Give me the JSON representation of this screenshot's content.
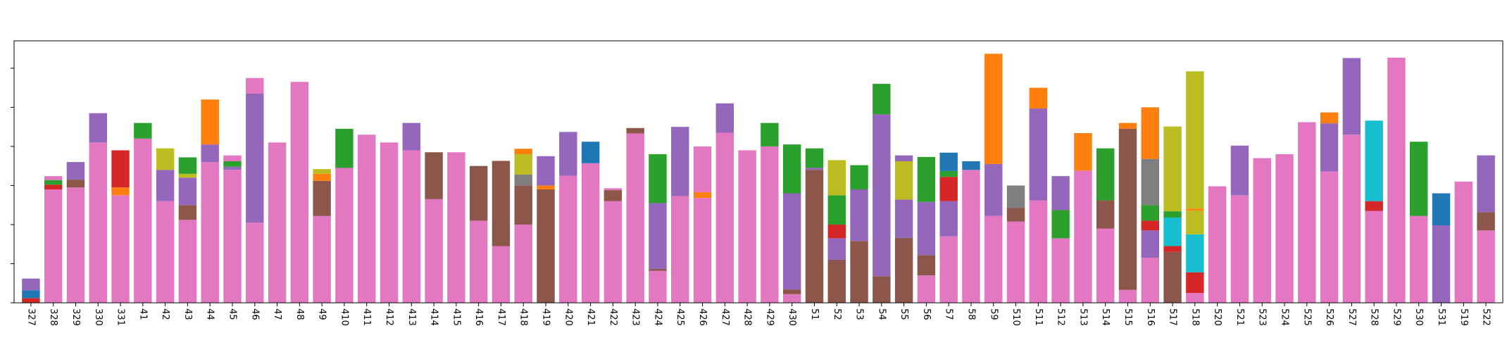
{
  "chart_data": {
    "type": "bar",
    "stacked": true,
    "ylim": [
      0,
      6.7
    ],
    "legend": "none",
    "grid": false,
    "categories": [
      "327",
      "328",
      "329",
      "330",
      "331",
      "41",
      "42",
      "43",
      "44",
      "45",
      "46",
      "47",
      "48",
      "49",
      "410",
      "411",
      "412",
      "413",
      "414",
      "415",
      "416",
      "417",
      "418",
      "419",
      "420",
      "421",
      "422",
      "423",
      "424",
      "425",
      "426",
      "427",
      "428",
      "429",
      "430",
      "51",
      "52",
      "53",
      "54",
      "55",
      "56",
      "57",
      "58",
      "59",
      "510",
      "511",
      "512",
      "513",
      "514",
      "515",
      "516",
      "517",
      "518",
      "520",
      "521",
      "523",
      "524",
      "525",
      "526",
      "527",
      "528",
      "529",
      "530",
      "531",
      "519",
      "522"
    ],
    "colors": {
      "blue": "#1f77b4",
      "orange": "#ff7f0e",
      "green": "#2ca02c",
      "red": "#d62728",
      "purple": "#9467bd",
      "brown": "#8c564b",
      "pink": "#e377c2",
      "gray": "#7f7f7f",
      "olive": "#bcbd22",
      "cyan": "#17becf"
    },
    "bars": [
      [
        [
          "red",
          0.12
        ],
        [
          "blue",
          0.2
        ],
        [
          "purple",
          0.3
        ]
      ],
      [
        [
          "pink",
          2.9
        ],
        [
          "red",
          0.12
        ],
        [
          "green",
          0.12
        ],
        [
          "pink",
          0.1
        ]
      ],
      [
        [
          "pink",
          2.95
        ],
        [
          "brown",
          0.2
        ],
        [
          "purple",
          0.45
        ]
      ],
      [
        [
          "pink",
          4.1
        ],
        [
          "purple",
          0.75
        ]
      ],
      [
        [
          "pink",
          2.75
        ],
        [
          "orange",
          0.2
        ],
        [
          "red",
          0.95
        ]
      ],
      [
        [
          "pink",
          4.2
        ],
        [
          "green",
          0.4
        ]
      ],
      [
        [
          "pink",
          2.6
        ],
        [
          "purple",
          0.8
        ],
        [
          "olive",
          0.55
        ]
      ],
      [
        [
          "pink",
          2.12
        ],
        [
          "brown",
          0.38
        ],
        [
          "purple",
          0.7
        ],
        [
          "olive",
          0.1
        ],
        [
          "green",
          0.42
        ]
      ],
      [
        [
          "pink",
          3.6
        ],
        [
          "purple",
          0.45
        ],
        [
          "orange",
          1.15
        ]
      ],
      [
        [
          "pink",
          3.4
        ],
        [
          "purple",
          0.08
        ],
        [
          "green",
          0.14
        ],
        [
          "pink",
          0.15
        ]
      ],
      [
        [
          "pink",
          2.05
        ],
        [
          "purple",
          3.3
        ],
        [
          "pink",
          0.4
        ]
      ],
      [
        [
          "pink",
          4.1
        ]
      ],
      [
        [
          "pink",
          5.65
        ]
      ],
      [
        [
          "pink",
          2.22
        ],
        [
          "brown",
          0.9
        ],
        [
          "orange",
          0.18
        ],
        [
          "olive",
          0.12
        ]
      ],
      [
        [
          "pink",
          3.45
        ],
        [
          "green",
          1.0
        ]
      ],
      [
        [
          "pink",
          4.3
        ]
      ],
      [
        [
          "pink",
          4.1
        ]
      ],
      [
        [
          "pink",
          3.9
        ],
        [
          "purple",
          0.7
        ]
      ],
      [
        [
          "pink",
          2.65
        ],
        [
          "brown",
          1.2
        ]
      ],
      [
        [
          "pink",
          3.85
        ]
      ],
      [
        [
          "pink",
          2.1
        ],
        [
          "brown",
          1.4
        ]
      ],
      [
        [
          "pink",
          1.45
        ],
        [
          "brown",
          2.18
        ]
      ],
      [
        [
          "pink",
          2.0
        ],
        [
          "brown",
          1.0
        ],
        [
          "gray",
          0.28
        ],
        [
          "olive",
          0.52
        ],
        [
          "orange",
          0.14
        ]
      ],
      [
        [
          "brown",
          2.9
        ],
        [
          "orange",
          0.1
        ],
        [
          "purple",
          0.75
        ]
      ],
      [
        [
          "pink",
          3.25
        ],
        [
          "purple",
          1.12
        ]
      ],
      [
        [
          "pink",
          3.57
        ],
        [
          "blue",
          0.55
        ]
      ],
      [
        [
          "pink",
          2.6
        ],
        [
          "brown",
          0.28
        ],
        [
          "pink",
          0.05
        ]
      ],
      [
        [
          "pink",
          4.33
        ],
        [
          "brown",
          0.14
        ]
      ],
      [
        [
          "pink",
          0.82
        ],
        [
          "brown",
          0.05
        ],
        [
          "purple",
          1.68
        ],
        [
          "green",
          1.25
        ]
      ],
      [
        [
          "pink",
          2.73
        ],
        [
          "purple",
          1.77
        ]
      ],
      [
        [
          "pink",
          2.68
        ],
        [
          "orange",
          0.15
        ],
        [
          "pink",
          1.17
        ]
      ],
      [
        [
          "pink",
          4.35
        ],
        [
          "purple",
          0.75
        ]
      ],
      [
        [
          "pink",
          3.9
        ]
      ],
      [
        [
          "pink",
          4.0
        ],
        [
          "green",
          0.6
        ]
      ],
      [
        [
          "pink",
          0.22
        ],
        [
          "brown",
          0.12
        ],
        [
          "purple",
          2.46
        ],
        [
          "green",
          1.25
        ]
      ],
      [
        [
          "brown",
          3.4
        ],
        [
          "purple",
          0.05
        ],
        [
          "green",
          0.5
        ]
      ],
      [
        [
          "brown",
          1.1
        ],
        [
          "purple",
          0.55
        ],
        [
          "red",
          0.35
        ],
        [
          "green",
          0.75
        ],
        [
          "olive",
          0.9
        ]
      ],
      [
        [
          "brown",
          1.58
        ],
        [
          "purple",
          1.32
        ],
        [
          "green",
          0.62
        ]
      ],
      [
        [
          "brown",
          0.68
        ],
        [
          "purple",
          4.14
        ],
        [
          "green",
          0.78
        ]
      ],
      [
        [
          "brown",
          1.66
        ],
        [
          "purple",
          0.98
        ],
        [
          "olive",
          0.98
        ],
        [
          "purple",
          0.15
        ]
      ],
      [
        [
          "pink",
          0.7
        ],
        [
          "brown",
          0.52
        ],
        [
          "purple",
          1.36
        ],
        [
          "green",
          1.15
        ]
      ],
      [
        [
          "pink",
          1.7
        ],
        [
          "purple",
          0.9
        ],
        [
          "red",
          0.62
        ],
        [
          "green",
          0.15
        ],
        [
          "blue",
          0.47
        ]
      ],
      [
        [
          "pink",
          3.4
        ],
        [
          "blue",
          0.22
        ]
      ],
      [
        [
          "pink",
          2.22
        ],
        [
          "purple",
          1.33
        ],
        [
          "orange",
          2.82
        ]
      ],
      [
        [
          "pink",
          2.08
        ],
        [
          "brown",
          0.35
        ],
        [
          "gray",
          0.57
        ]
      ],
      [
        [
          "pink",
          2.62
        ],
        [
          "purple",
          2.35
        ],
        [
          "orange",
          0.53
        ]
      ],
      [
        [
          "pink",
          1.65
        ],
        [
          "green",
          0.07
        ],
        [
          "green",
          0.65
        ],
        [
          "purple",
          0.87
        ]
      ],
      [
        [
          "pink",
          3.38
        ],
        [
          "orange",
          0.96
        ]
      ],
      [
        [
          "pink",
          1.9
        ],
        [
          "brown",
          0.72
        ],
        [
          "green",
          1.33
        ]
      ],
      [
        [
          "pink",
          0.33
        ],
        [
          "brown",
          4.12
        ],
        [
          "orange",
          0.15
        ]
      ],
      [
        [
          "pink",
          1.15
        ],
        [
          "purple",
          0.7
        ],
        [
          "red",
          0.25
        ],
        [
          "green",
          0.4
        ],
        [
          "gray",
          1.18
        ],
        [
          "orange",
          1.32
        ]
      ],
      [
        [
          "brown",
          1.3
        ],
        [
          "red",
          0.15
        ],
        [
          "cyan",
          0.73
        ],
        [
          "green",
          0.16
        ],
        [
          "olive",
          2.17
        ]
      ],
      [
        [
          "pink",
          0.25
        ],
        [
          "red",
          0.53
        ],
        [
          "cyan",
          0.97
        ],
        [
          "olive",
          0.61
        ],
        [
          "orange",
          0.05
        ],
        [
          "olive",
          3.51
        ]
      ],
      [
        [
          "pink",
          2.98
        ]
      ],
      [
        [
          "pink",
          2.75
        ],
        [
          "purple",
          1.27
        ]
      ],
      [
        [
          "pink",
          3.7
        ]
      ],
      [
        [
          "pink",
          3.8
        ]
      ],
      [
        [
          "pink",
          4.62
        ]
      ],
      [
        [
          "pink",
          3.36
        ],
        [
          "purple",
          1.23
        ],
        [
          "orange",
          0.28
        ]
      ],
      [
        [
          "pink",
          4.3
        ],
        [
          "purple",
          1.96
        ]
      ],
      [
        [
          "pink",
          2.35
        ],
        [
          "red",
          0.25
        ],
        [
          "cyan",
          2.06
        ]
      ],
      [
        [
          "pink",
          6.27
        ]
      ],
      [
        [
          "pink",
          2.22
        ],
        [
          "green",
          1.9
        ]
      ],
      [
        [
          "purple",
          1.98
        ],
        [
          "blue",
          0.82
        ]
      ],
      [
        [
          "pink",
          3.1
        ]
      ],
      [
        [
          "pink",
          1.85
        ],
        [
          "brown",
          0.47
        ],
        [
          "purple",
          1.45
        ]
      ]
    ]
  }
}
